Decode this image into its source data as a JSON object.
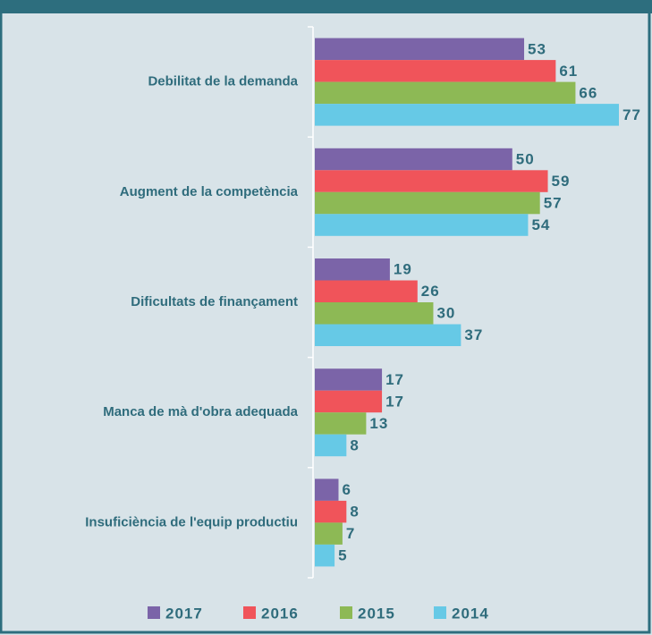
{
  "chart_data": {
    "type": "bar",
    "orientation": "horizontal",
    "categories": [
      "Debilitat de la demanda",
      "Augment de la competència",
      "Dificultats de finançament",
      "Manca de mà d'obra adequada",
      "Insuficiència de l'equip productiu"
    ],
    "series": [
      {
        "name": "2017",
        "color": "#7b64a8",
        "values": [
          53,
          50,
          19,
          17,
          6
        ]
      },
      {
        "name": "2016",
        "color": "#f0545a",
        "values": [
          61,
          59,
          26,
          17,
          8
        ]
      },
      {
        "name": "2015",
        "color": "#8db955",
        "values": [
          66,
          57,
          30,
          13,
          7
        ]
      },
      {
        "name": "2014",
        "color": "#66c9e6",
        "values": [
          77,
          54,
          37,
          8,
          5
        ]
      }
    ],
    "legend": "bottom"
  }
}
